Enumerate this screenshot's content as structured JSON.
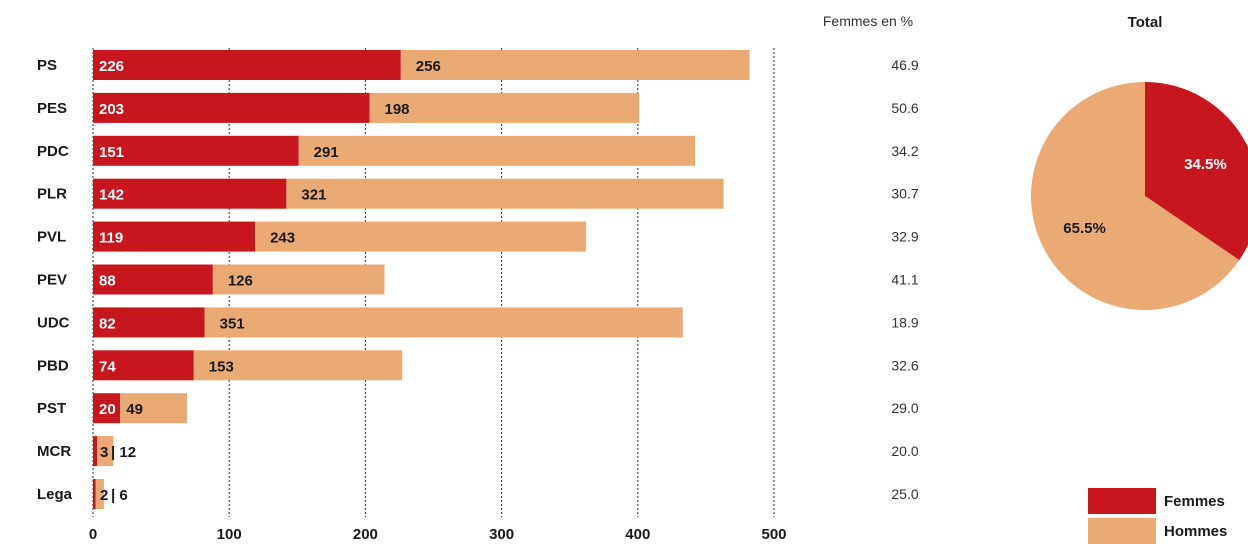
{
  "chart_data": [
    {
      "type": "bar",
      "orientation": "horizontal",
      "stacked": true,
      "categories": [
        "PS",
        "PES",
        "PDC",
        "PLR",
        "PVL",
        "PEV",
        "UDC",
        "PBD",
        "PST",
        "MCR",
        "Lega"
      ],
      "series": [
        {
          "name": "Femmes",
          "values": [
            226,
            203,
            151,
            142,
            119,
            88,
            82,
            74,
            20,
            3,
            2
          ],
          "color": "#c8161d"
        },
        {
          "name": "Hommes",
          "values": [
            256,
            198,
            291,
            321,
            243,
            126,
            351,
            153,
            49,
            12,
            6
          ],
          "color": "#ebaa73"
        }
      ],
      "bar_labels": [
        "226",
        "203",
        "151",
        "142",
        "119",
        "88",
        "82",
        "74",
        "20",
        "3",
        "2"
      ],
      "hommes_labels": [
        "256",
        "198",
        "291",
        "321",
        "243",
        "126",
        "351",
        "153",
        "49",
        "| 12",
        "| 6"
      ],
      "xlim": [
        0,
        500
      ],
      "xticks": [
        "0",
        "100",
        "200",
        "300",
        "400",
        "500"
      ],
      "grid": "vertical dotted lines at each tick",
      "side_column": {
        "header": "Femmes en %",
        "values": [
          "46.9",
          "50.6",
          "34.2",
          "30.7",
          "32.9",
          "41.1",
          "18.9",
          "32.6",
          "29.0",
          "20.0",
          "25.0"
        ]
      }
    },
    {
      "type": "pie",
      "title": "Total",
      "slices": [
        {
          "name": "Femmes",
          "value": 34.5,
          "label": "34.5%",
          "color": "#c8161d"
        },
        {
          "name": "Hommes",
          "value": 65.5,
          "label": "65.5%",
          "color": "#ebaa73"
        }
      ],
      "legend": {
        "placement": "bottom-right",
        "entries": [
          "Femmes",
          "Hommes"
        ]
      }
    }
  ]
}
